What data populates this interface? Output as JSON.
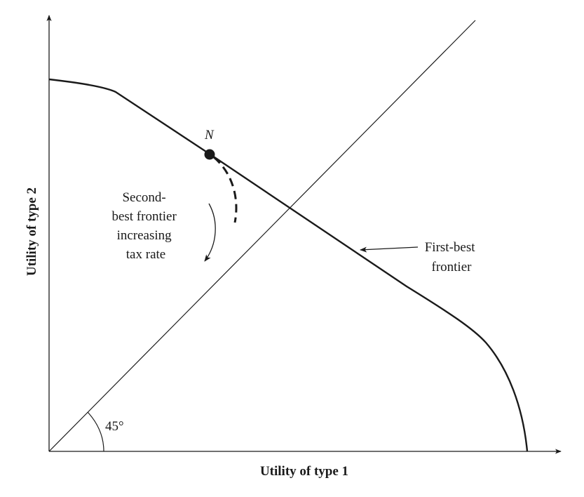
{
  "diagram": {
    "x_axis_label": "Utility of type 1",
    "y_axis_label": "Utility of type 2",
    "angle_label": "45°",
    "point_label": "N",
    "second_best_label": [
      "Second-",
      "best frontier",
      "increasing",
      "tax rate"
    ],
    "first_best_label": [
      "First-best",
      "frontier"
    ],
    "colors": {
      "ink": "#1a1a1a",
      "background": "#ffffff"
    }
  }
}
